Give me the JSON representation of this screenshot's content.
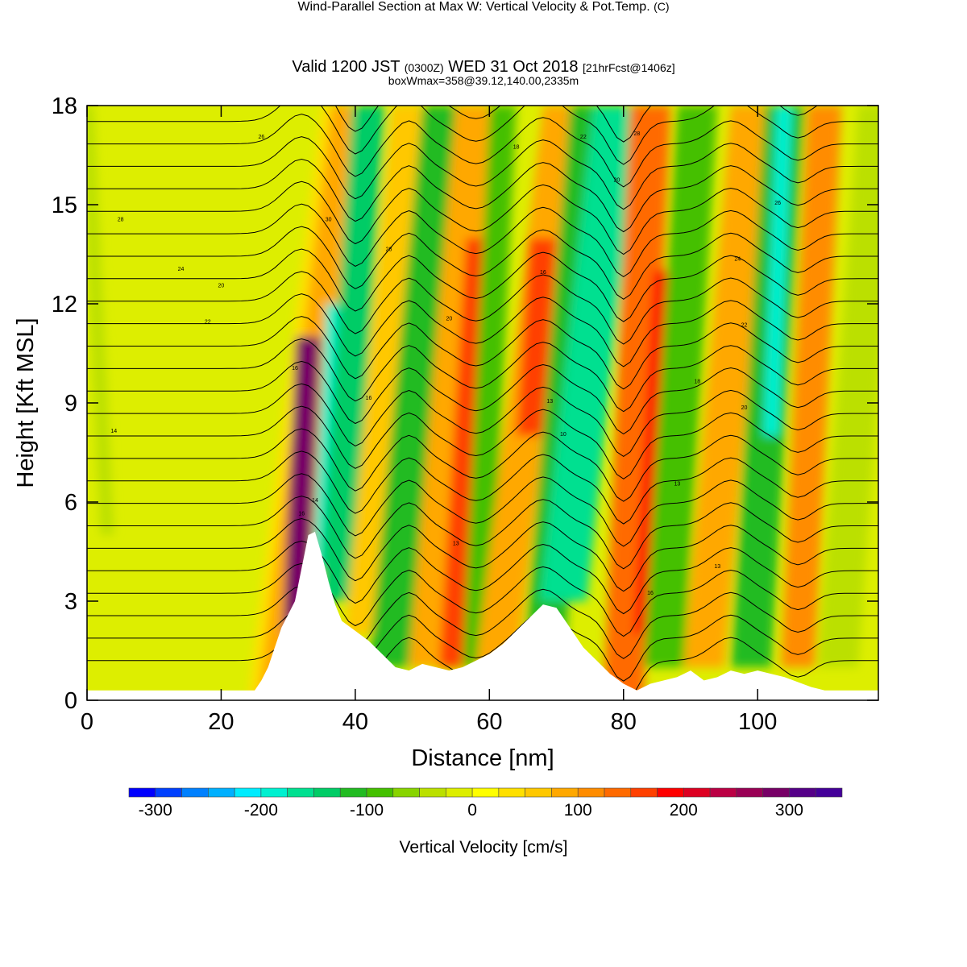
{
  "title_line1": "Wind-Parallel Section at Max W: Vertical Velocity & Pot.Temp.",
  "title_line1_mark": "(C)",
  "title_line2_main": "Valid 1200 JST",
  "title_line2_z": "(0300Z)",
  "title_line2_date": "WED 31 Oct 2018",
  "title_line2_fcst": "[21hrFcst@1406z]",
  "title_line3": "boxWmax=358@39.12,140.00,2335m",
  "chart_data": {
    "type": "heatmap",
    "xlabel": "Distance [nm]",
    "ylabel": "Height [Kft MSL]",
    "xlim": [
      0,
      118
    ],
    "ylim": [
      0,
      18
    ],
    "x_ticks": [
      0,
      20,
      40,
      60,
      80,
      100
    ],
    "y_ticks": [
      0,
      3,
      6,
      9,
      12,
      15,
      18
    ],
    "colorbar": {
      "label": "Vertical Velocity [cm/s]",
      "min": -325,
      "max": 350,
      "step": 25,
      "tick_values": [
        -300,
        -200,
        -100,
        0,
        100,
        200,
        300
      ],
      "tick_labels": [
        "-300",
        "-200",
        "-100",
        "0",
        "100",
        "200",
        "300"
      ],
      "colors": [
        "#0000ff",
        "#0040ff",
        "#0080ff",
        "#00b0ff",
        "#00ecff",
        "#00f0d0",
        "#00e090",
        "#00cc66",
        "#22bb22",
        "#44c000",
        "#88d400",
        "#bbe000",
        "#ddee00",
        "#ffff00",
        "#ffe000",
        "#ffc800",
        "#ffa800",
        "#ff8c00",
        "#ff6a00",
        "#ff4000",
        "#ff0000",
        "#dd0022",
        "#bb0044",
        "#990055",
        "#770066",
        "#550088",
        "#440099"
      ]
    },
    "contour_labels": [
      "16",
      "14",
      "14",
      "13",
      "10",
      "16",
      "16",
      "13",
      "13",
      "13",
      "16",
      "18",
      "20",
      "22",
      "24",
      "26",
      "28",
      "28",
      "30",
      "20",
      "22",
      "16",
      "18",
      "20",
      "22",
      "24",
      "26",
      "28",
      "20"
    ]
  }
}
